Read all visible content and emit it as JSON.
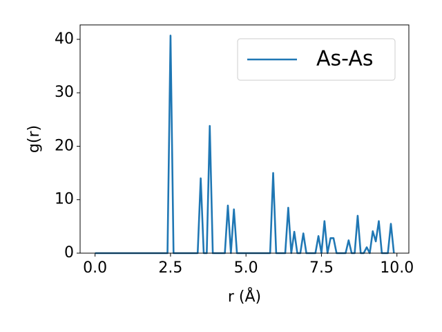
{
  "chart_data": {
    "type": "line",
    "xlabel": "r (Å)",
    "ylabel": "g(r)",
    "x": [
      0,
      0.1,
      0.2,
      0.3,
      0.4,
      0.5,
      0.6,
      0.7,
      0.8,
      0.9,
      1,
      1.1,
      1.2,
      1.3,
      1.4,
      1.5,
      1.6,
      1.7,
      1.8,
      1.9,
      2,
      2.1,
      2.2,
      2.3,
      2.4,
      2.5,
      2.6,
      2.7,
      2.8,
      2.9,
      3,
      3.1,
      3.2,
      3.3,
      3.4,
      3.5,
      3.6,
      3.7,
      3.8,
      3.9,
      4,
      4.1,
      4.2,
      4.3,
      4.4,
      4.5,
      4.6,
      4.7,
      4.8,
      4.9,
      5,
      5.1,
      5.2,
      5.3,
      5.4,
      5.5,
      5.6,
      5.7,
      5.8,
      5.9,
      6,
      6.1,
      6.2,
      6.3,
      6.4,
      6.5,
      6.6,
      6.7,
      6.8,
      6.9,
      7,
      7.1,
      7.2,
      7.3,
      7.4,
      7.5,
      7.6,
      7.7,
      7.8,
      7.9,
      8,
      8.1,
      8.2,
      8.3,
      8.4,
      8.5,
      8.6,
      8.7,
      8.8,
      8.9,
      9,
      9.1,
      9.2,
      9.3,
      9.4,
      9.5,
      9.6,
      9.7,
      9.8,
      9.9
    ],
    "series": [
      {
        "name": "As-As",
        "color": "#1f77b4",
        "values": [
          0,
          0,
          0,
          0,
          0,
          0,
          0,
          0,
          0,
          0,
          0,
          0,
          0,
          0,
          0,
          0,
          0,
          0,
          0,
          0,
          0,
          0,
          0,
          0,
          0,
          40.7,
          0,
          0,
          0,
          0,
          0,
          0,
          0,
          0,
          0,
          14,
          0,
          0,
          23.8,
          0,
          0,
          0,
          0,
          0,
          8.9,
          0,
          8.2,
          0,
          0,
          0,
          0,
          0,
          0,
          0,
          0,
          0,
          0,
          0,
          0,
          15,
          0,
          0,
          0,
          0,
          8.5,
          0,
          4,
          0,
          0,
          3.7,
          0,
          0,
          0,
          0,
          3.2,
          0,
          6,
          0,
          2.8,
          2.8,
          0,
          0,
          0,
          0,
          2.4,
          0,
          0,
          7,
          0,
          0,
          1.1,
          0,
          4.1,
          2.2,
          6,
          0,
          0,
          0,
          5.5,
          0
        ]
      }
    ],
    "xlim": [
      -0.495,
      10.395
    ],
    "ylim": [
      0,
      42.7
    ],
    "xticks": [
      {
        "value": 0,
        "label": "0.0"
      },
      {
        "value": 2.5,
        "label": "2.5"
      },
      {
        "value": 5,
        "label": "5.0"
      },
      {
        "value": 7.5,
        "label": "7.5"
      },
      {
        "value": 10,
        "label": "10.0"
      }
    ],
    "yticks": [
      0,
      10,
      20,
      30,
      40
    ],
    "grid": false,
    "legend": "upper right"
  }
}
